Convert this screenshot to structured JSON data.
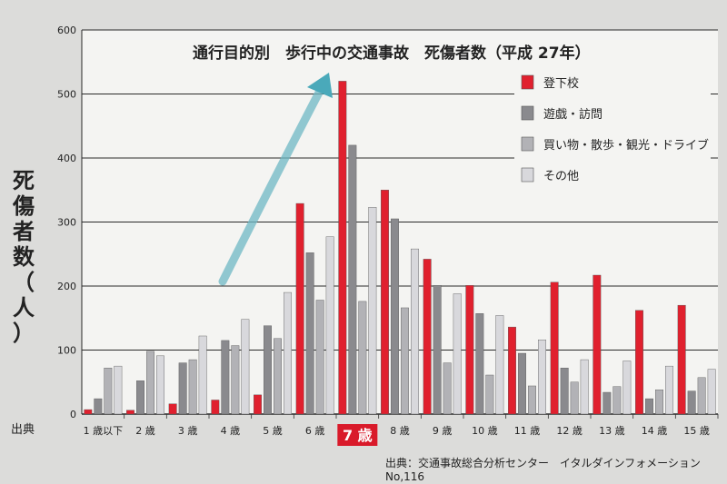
{
  "chart_data": {
    "type": "bar",
    "title": "通行目的別　歩行中の交通事故　死傷者数（平成 27年）",
    "ylabel": "死傷者数（人）",
    "ylim": [
      0,
      600
    ],
    "yticks": [
      0,
      100,
      200,
      300,
      400,
      500,
      600
    ],
    "grid": true,
    "legend_position": "top-right",
    "highlight_category": "7 歳",
    "categories": [
      "1 歳以下",
      "2 歳",
      "3 歳",
      "4 歳",
      "5 歳",
      "6 歳",
      "7 歳",
      "8 歳",
      "9 歳",
      "10 歳",
      "11 歳",
      "12 歳",
      "13 歳",
      "14 歳",
      "15 歳"
    ],
    "series": [
      {
        "name": "登下校",
        "color": "#e0202e",
        "values": [
          7,
          6,
          16,
          22,
          30,
          329,
          520,
          350,
          242,
          201,
          136,
          206,
          217,
          162,
          170
        ]
      },
      {
        "name": "遊戯・訪問",
        "color": "#8a8a8e",
        "values": [
          24,
          52,
          80,
          115,
          138,
          252,
          420,
          305,
          201,
          157,
          95,
          72,
          34,
          24,
          36
        ]
      },
      {
        "name": "買い物・散歩・観光・ドライブ",
        "color": "#b2b2b6",
        "values": [
          72,
          98,
          85,
          107,
          118,
          178,
          176,
          166,
          80,
          61,
          44,
          50,
          43,
          38,
          57
        ]
      },
      {
        "name": "その他",
        "color": "#d8d8dc",
        "values": [
          75,
          91,
          122,
          148,
          190,
          277,
          323,
          258,
          188,
          154,
          116,
          85,
          83,
          75,
          70
        ]
      }
    ]
  },
  "labels": {
    "source_left": "出典",
    "source_right": "出典：交通事故総合分析センター　イタルダインフォメーション No,116"
  }
}
